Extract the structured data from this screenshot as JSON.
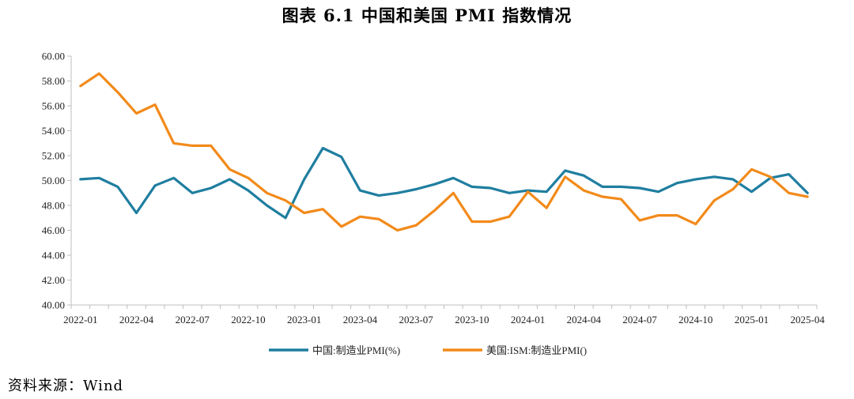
{
  "title": "图表 6.1    中国和美国 PMI 指数情况",
  "source": "资料来源：Wind",
  "chart_data": {
    "type": "line",
    "ylim": [
      40,
      60
    ],
    "yticks": [
      "40.00",
      "42.00",
      "44.00",
      "46.00",
      "48.00",
      "50.00",
      "52.00",
      "54.00",
      "56.00",
      "58.00",
      "60.00"
    ],
    "x": [
      "2022-01",
      "2022-02",
      "2022-03",
      "2022-04",
      "2022-05",
      "2022-06",
      "2022-07",
      "2022-08",
      "2022-09",
      "2022-10",
      "2022-11",
      "2022-12",
      "2023-01",
      "2023-02",
      "2023-03",
      "2023-04",
      "2023-05",
      "2023-06",
      "2023-07",
      "2023-08",
      "2023-09",
      "2023-10",
      "2023-11",
      "2023-12",
      "2024-01",
      "2024-02",
      "2024-03",
      "2024-04",
      "2024-05",
      "2024-06",
      "2024-07",
      "2024-08",
      "2024-09",
      "2024-10",
      "2024-11",
      "2024-12",
      "2025-01",
      "2025-02",
      "2025-03",
      "2025-04"
    ],
    "xtick_labels": [
      "2022-01",
      "2022-04",
      "2022-07",
      "2022-10",
      "2023-01",
      "2023-04",
      "2023-07",
      "2023-10",
      "2024-01",
      "2024-04",
      "2024-07",
      "2024-10",
      "2025-01",
      "2025-04"
    ],
    "grid": false,
    "legend_position": "bottom",
    "series": [
      {
        "name": "中国:制造业PMI(%)",
        "color": "#1f7ea0",
        "values": [
          50.1,
          50.2,
          49.5,
          47.4,
          49.6,
          50.2,
          49.0,
          49.4,
          50.1,
          49.2,
          48.0,
          47.0,
          50.1,
          52.6,
          51.9,
          49.2,
          48.8,
          49.0,
          49.3,
          49.7,
          50.2,
          49.5,
          49.4,
          49.0,
          49.2,
          49.1,
          50.8,
          50.4,
          49.5,
          49.5,
          49.4,
          49.1,
          49.8,
          50.1,
          50.3,
          50.1,
          49.1,
          50.2,
          50.5,
          49.0
        ]
      },
      {
        "name": "美国:ISM:制造业PMI()",
        "color": "#f28a1a",
        "values": [
          57.6,
          58.6,
          57.1,
          55.4,
          56.1,
          53.0,
          52.8,
          52.8,
          50.9,
          50.2,
          49.0,
          48.4,
          47.4,
          47.7,
          46.3,
          47.1,
          46.9,
          46.0,
          46.4,
          47.6,
          49.0,
          46.7,
          46.7,
          47.1,
          49.1,
          47.8,
          50.3,
          49.2,
          48.7,
          48.5,
          46.8,
          47.2,
          47.2,
          46.5,
          48.4,
          49.3,
          50.9,
          50.3,
          49.0,
          48.7
        ]
      }
    ]
  }
}
